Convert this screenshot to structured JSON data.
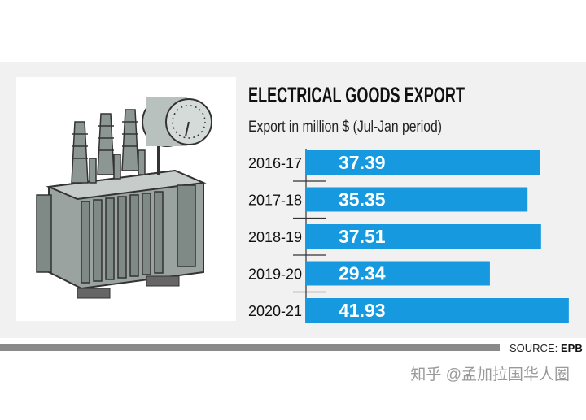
{
  "chart_data": {
    "type": "bar",
    "orientation": "horizontal",
    "title": "ELECTRICAL GOODS EXPORT",
    "subtitle": "Export in million $ (Jul-Jan period)",
    "categories": [
      "2016-17",
      "2017-18",
      "2018-19",
      "2019-20",
      "2020-21"
    ],
    "values": [
      37.39,
      35.35,
      37.51,
      29.34,
      41.93
    ],
    "color": "#1699df",
    "source_label": "SOURCE:",
    "source": "EPB",
    "watermark": "知乎 @孟加拉国华人圈"
  }
}
